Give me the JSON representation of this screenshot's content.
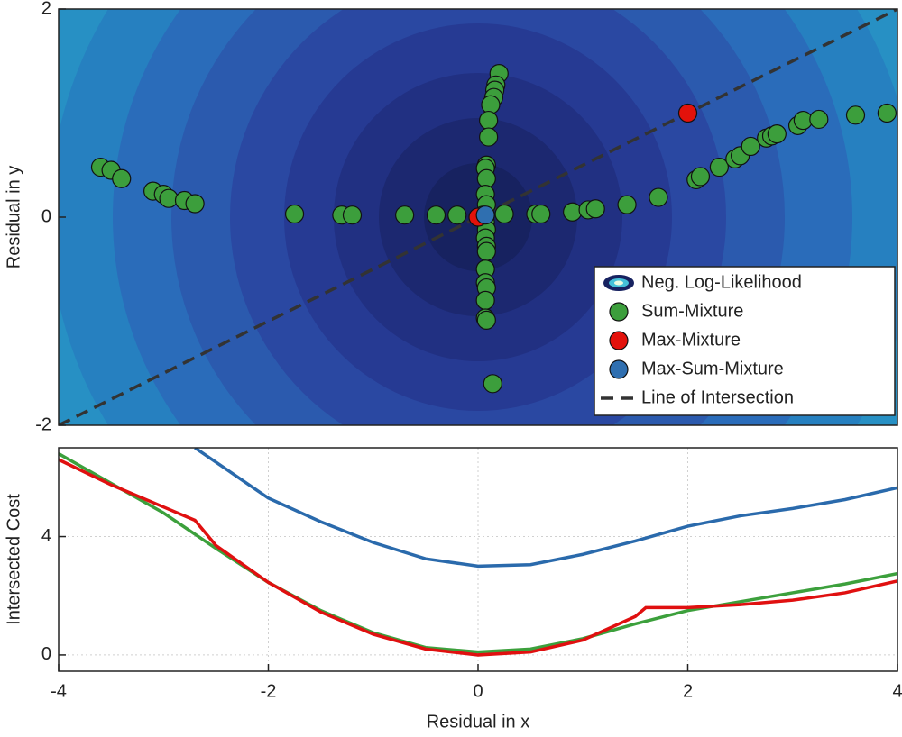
{
  "chart_data": [
    {
      "type": "scatter",
      "ylabel": "Residual in y",
      "xlim": [
        -4,
        4
      ],
      "ylim": [
        -2,
        2
      ],
      "yticks": [
        -2,
        0,
        2
      ],
      "legend": "lower right",
      "contour_label": "Neg. Log-Likelihood",
      "series": [
        {
          "name": "Sum-Mixture",
          "color": "#3c9e3c",
          "x": [
            0.2,
            0.17,
            0.16,
            0.15,
            0.12,
            0.1,
            0.1,
            0.08,
            0.07,
            0.08,
            0.07,
            0.08,
            0.07,
            0.08,
            0.07,
            0.08,
            0.08,
            0.07,
            0.07,
            0.08,
            0.07,
            0.07,
            0.08,
            0.14,
            -3.6,
            -3.5,
            -3.4,
            -3.1,
            -3.0,
            -2.95,
            -2.8,
            -2.7,
            -1.75,
            -1.3,
            -1.2,
            -0.7,
            -0.4,
            -0.2,
            0.05,
            0.25,
            0.55,
            0.6,
            0.9,
            1.05,
            1.12,
            1.42,
            1.72,
            2.08,
            2.12,
            2.3,
            2.45,
            2.5,
            2.6,
            2.75,
            2.8,
            2.85,
            3.05,
            3.1,
            3.25,
            3.6,
            3.9
          ],
          "y": [
            1.38,
            1.27,
            1.22,
            1.15,
            1.08,
            0.93,
            0.77,
            0.5,
            0.47,
            0.37,
            0.22,
            0.12,
            -0.05,
            -0.12,
            -0.2,
            -0.28,
            -0.33,
            -0.5,
            -0.63,
            -0.68,
            -0.8,
            -0.97,
            -0.99,
            -1.6,
            0.48,
            0.45,
            0.37,
            0.25,
            0.22,
            0.18,
            0.16,
            0.13,
            0.03,
            0.02,
            0.02,
            0.02,
            0.02,
            0.02,
            0.02,
            0.03,
            0.03,
            0.03,
            0.05,
            0.07,
            0.08,
            0.12,
            0.19,
            0.36,
            0.39,
            0.48,
            0.56,
            0.59,
            0.68,
            0.76,
            0.78,
            0.8,
            0.88,
            0.93,
            0.94,
            0.98,
            1.0
          ]
        },
        {
          "name": "Max-Mixture",
          "color": "#e3120b",
          "x": [
            2.0,
            0.0
          ],
          "y": [
            1.0,
            0.0
          ]
        },
        {
          "name": "Max-Sum-Mixture",
          "color": "#2f6fb0",
          "x": [
            0.07
          ],
          "y": [
            0.02
          ]
        }
      ],
      "line": {
        "name": "Line of Intersection",
        "color": "#333333",
        "x": [
          -4,
          4
        ],
        "y": [
          -2,
          2
        ]
      }
    },
    {
      "type": "line",
      "xlabel": "Residual in x",
      "ylabel": "Intersected Cost",
      "xlim": [
        -4,
        4
      ],
      "ylim": [
        -0.55,
        7
      ],
      "xticks": [
        -4,
        -2,
        0,
        2,
        4
      ],
      "yticks": [
        0,
        4
      ],
      "grid": true,
      "series": [
        {
          "color": "#2a6aac",
          "x": [
            -2.7,
            -2,
            -1.5,
            -1,
            -0.5,
            0,
            0.5,
            1,
            1.5,
            2,
            2.5,
            3,
            3.5,
            4
          ],
          "y": [
            7,
            5.3,
            4.5,
            3.8,
            3.25,
            3.0,
            3.05,
            3.4,
            3.85,
            4.35,
            4.7,
            4.95,
            5.25,
            5.65
          ]
        },
        {
          "color": "#3ca03c",
          "x": [
            -4,
            -3.5,
            -3,
            -2.5,
            -2,
            -1.5,
            -1,
            -0.5,
            0,
            0.5,
            1,
            1.5,
            2,
            2.5,
            3,
            3.5,
            4
          ],
          "y": [
            6.8,
            5.8,
            4.8,
            3.6,
            2.45,
            1.5,
            0.75,
            0.25,
            0.1,
            0.2,
            0.55,
            1.05,
            1.5,
            1.8,
            2.1,
            2.4,
            2.75
          ]
        },
        {
          "color": "#e01010",
          "x": [
            -4,
            -3.5,
            -3,
            -2.7,
            -2.5,
            -2,
            -1.5,
            -1,
            -0.5,
            0,
            0.5,
            1,
            1.5,
            1.6,
            2,
            2.5,
            3,
            3.5,
            4
          ],
          "y": [
            6.6,
            5.75,
            5.0,
            4.55,
            3.7,
            2.45,
            1.45,
            0.7,
            0.2,
            0.0,
            0.1,
            0.5,
            1.3,
            1.6,
            1.6,
            1.7,
            1.85,
            2.1,
            2.5
          ]
        }
      ]
    }
  ]
}
